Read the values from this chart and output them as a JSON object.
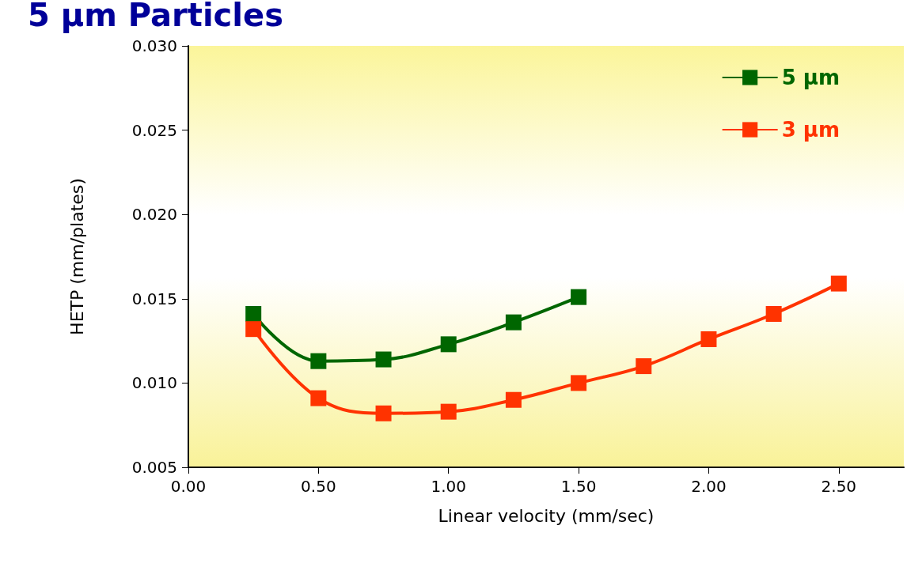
{
  "chart_data": {
    "type": "line",
    "title": "5 µm Particles",
    "xlabel": "Linear velocity (mm/sec)",
    "ylabel": "HETP (mm/plates)",
    "series": [
      {
        "name": "5 µm",
        "color": "#006600",
        "x": [
          0.25,
          0.5,
          0.75,
          1.0,
          1.25,
          1.5
        ],
        "values": [
          0.0141,
          0.0113,
          0.0114,
          0.0123,
          0.0136,
          0.0151
        ]
      },
      {
        "name": "3 µm",
        "color": "#ff3300",
        "x": [
          0.25,
          0.5,
          0.75,
          1.0,
          1.25,
          1.5,
          1.75,
          2.0,
          2.25,
          2.5
        ],
        "values": [
          0.0132,
          0.0091,
          0.0082,
          0.0083,
          0.009,
          0.01,
          0.011,
          0.0126,
          0.0141,
          0.0159
        ]
      }
    ],
    "xlim": [
      0,
      2.75
    ],
    "xticks": [
      {
        "value": 0,
        "label": "0.00"
      },
      {
        "value": 0.5,
        "label": "0.50"
      },
      {
        "value": 1,
        "label": "1.00"
      },
      {
        "value": 1.5,
        "label": "1.50"
      },
      {
        "value": 2,
        "label": "2.00"
      },
      {
        "value": 2.5,
        "label": "2.50"
      }
    ],
    "ylim": [
      0.005,
      0.03
    ],
    "yticks": [
      {
        "value": 0.005,
        "label": "0.005"
      },
      {
        "value": 0.01,
        "label": "0.010"
      },
      {
        "value": 0.015,
        "label": "0.015"
      },
      {
        "value": 0.02,
        "label": "0.020"
      },
      {
        "value": 0.025,
        "label": "0.025"
      },
      {
        "value": 0.03,
        "label": "0.030"
      }
    ],
    "legend": "top right",
    "marker": "square",
    "line_style": "solid",
    "grid": false
  }
}
